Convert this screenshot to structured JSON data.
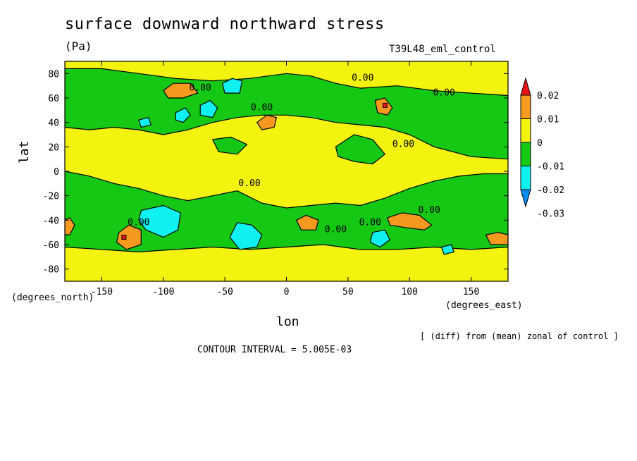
{
  "chart_data": {
    "type": "heatmap",
    "title": "surface downward northward stress",
    "units": "(Pa)",
    "experiment": "T39L48_eml_control",
    "xlabel": "lon",
    "ylabel": "lat",
    "x_units": "(degrees_east)",
    "y_units": "(degrees_north)",
    "xlim": [
      -180,
      180
    ],
    "ylim": [
      -90,
      90
    ],
    "x_ticks": [
      -150,
      -100,
      -50,
      0,
      50,
      100,
      150
    ],
    "y_ticks": [
      80,
      60,
      40,
      20,
      0,
      -20,
      -40,
      -60,
      -80
    ],
    "x_tick_labels": [
      "-150",
      "-100",
      "-50",
      "0",
      "50",
      "100",
      "150"
    ],
    "y_tick_labels": [
      "80",
      "60",
      "40",
      "20",
      "0",
      "-20",
      "-40",
      "-60",
      "-80"
    ],
    "colorbar": {
      "levels": [
        "0.02",
        "0.01",
        "0",
        "-0.01",
        "-0.02",
        "-0.03"
      ],
      "colors": [
        "#e8141b",
        "#f59a1e",
        "#f4f20f",
        "#14c814",
        "#0ff0f0",
        "#0a8cf0"
      ]
    },
    "contour_labels": [
      "0.00",
      "0.00",
      "0.00",
      "0.00",
      "0.00",
      "0.00",
      "0.00",
      "0.00",
      "0.00",
      "0.00"
    ],
    "contour_interval_text": "CONTOUR INTERVAL = 5.005E-03",
    "note": "[ (diff) from (mean) zonal of control ]",
    "regions": {
      "green": [
        [
          [
            -180,
            84
          ],
          [
            -150,
            84
          ],
          [
            -120,
            80
          ],
          [
            -90,
            76
          ],
          [
            -60,
            74
          ],
          [
            -30,
            76
          ],
          [
            0,
            80
          ],
          [
            20,
            78
          ],
          [
            40,
            72
          ],
          [
            60,
            68
          ],
          [
            90,
            70
          ],
          [
            120,
            66
          ],
          [
            150,
            64
          ],
          [
            180,
            62
          ],
          [
            180,
            10
          ],
          [
            150,
            12
          ],
          [
            120,
            20
          ],
          [
            100,
            30
          ],
          [
            80,
            36
          ],
          [
            60,
            38
          ],
          [
            40,
            40
          ],
          [
            20,
            44
          ],
          [
            0,
            46
          ],
          [
            -20,
            46
          ],
          [
            -40,
            44
          ],
          [
            -60,
            40
          ],
          [
            -80,
            34
          ],
          [
            -100,
            30
          ],
          [
            -120,
            34
          ],
          [
            -140,
            36
          ],
          [
            -160,
            34
          ],
          [
            -180,
            36
          ]
        ],
        [
          [
            -180,
            0
          ],
          [
            -160,
            -4
          ],
          [
            -140,
            -10
          ],
          [
            -120,
            -14
          ],
          [
            -100,
            -20
          ],
          [
            -80,
            -24
          ],
          [
            -60,
            -20
          ],
          [
            -40,
            -16
          ],
          [
            -20,
            -26
          ],
          [
            0,
            -30
          ],
          [
            20,
            -28
          ],
          [
            40,
            -26
          ],
          [
            60,
            -28
          ],
          [
            80,
            -22
          ],
          [
            100,
            -14
          ],
          [
            120,
            -8
          ],
          [
            140,
            -4
          ],
          [
            160,
            -2
          ],
          [
            180,
            -2
          ],
          [
            180,
            -62
          ],
          [
            150,
            -64
          ],
          [
            120,
            -62
          ],
          [
            90,
            -64
          ],
          [
            60,
            -64
          ],
          [
            30,
            -60
          ],
          [
            0,
            -62
          ],
          [
            -30,
            -64
          ],
          [
            -60,
            -62
          ],
          [
            -90,
            -64
          ],
          [
            -120,
            -66
          ],
          [
            -150,
            -64
          ],
          [
            -180,
            -62
          ]
        ],
        [
          [
            40,
            20
          ],
          [
            55,
            30
          ],
          [
            70,
            26
          ],
          [
            80,
            14
          ],
          [
            70,
            6
          ],
          [
            55,
            8
          ],
          [
            42,
            12
          ]
        ],
        [
          [
            -60,
            26
          ],
          [
            -45,
            28
          ],
          [
            -32,
            22
          ],
          [
            -40,
            14
          ],
          [
            -55,
            16
          ]
        ]
      ],
      "orange": [
        [
          [
            -100,
            66
          ],
          [
            -92,
            72
          ],
          [
            -78,
            72
          ],
          [
            -72,
            64
          ],
          [
            -84,
            60
          ],
          [
            -96,
            60
          ]
        ],
        [
          [
            -136,
            -50
          ],
          [
            -128,
            -44
          ],
          [
            -118,
            -48
          ],
          [
            -118,
            -60
          ],
          [
            -130,
            -64
          ],
          [
            -138,
            -58
          ]
        ],
        [
          [
            82,
            -38
          ],
          [
            94,
            -34
          ],
          [
            108,
            -36
          ],
          [
            118,
            -44
          ],
          [
            112,
            -48
          ],
          [
            96,
            -46
          ],
          [
            84,
            -44
          ]
        ],
        [
          [
            72,
            58
          ],
          [
            80,
            60
          ],
          [
            86,
            52
          ],
          [
            82,
            46
          ],
          [
            74,
            48
          ]
        ],
        [
          [
            -24,
            40
          ],
          [
            -16,
            46
          ],
          [
            -8,
            44
          ],
          [
            -10,
            36
          ],
          [
            -20,
            34
          ]
        ],
        [
          [
            8,
            -40
          ],
          [
            16,
            -36
          ],
          [
            26,
            -40
          ],
          [
            24,
            -48
          ],
          [
            12,
            -48
          ]
        ],
        [
          [
            162,
            -52
          ],
          [
            172,
            -50
          ],
          [
            180,
            -52
          ],
          [
            180,
            -60
          ],
          [
            166,
            -60
          ]
        ],
        [
          [
            -180,
            -40
          ],
          [
            -176,
            -38
          ],
          [
            -172,
            -44
          ],
          [
            -176,
            -52
          ],
          [
            -180,
            -52
          ]
        ]
      ],
      "cyan": [
        [
          [
            -118,
            -32
          ],
          [
            -100,
            -28
          ],
          [
            -86,
            -34
          ],
          [
            -88,
            -48
          ],
          [
            -100,
            -54
          ],
          [
            -114,
            -48
          ],
          [
            -120,
            -40
          ]
        ],
        [
          [
            -40,
            -42
          ],
          [
            -28,
            -44
          ],
          [
            -20,
            -52
          ],
          [
            -24,
            -62
          ],
          [
            -38,
            -64
          ],
          [
            -46,
            -54
          ]
        ],
        [
          [
            70,
            -50
          ],
          [
            80,
            -48
          ],
          [
            84,
            -56
          ],
          [
            76,
            -62
          ],
          [
            68,
            -58
          ]
        ],
        [
          [
            -52,
            72
          ],
          [
            -44,
            76
          ],
          [
            -36,
            74
          ],
          [
            -38,
            64
          ],
          [
            -50,
            64
          ]
        ],
        [
          [
            -70,
            54
          ],
          [
            -62,
            58
          ],
          [
            -56,
            52
          ],
          [
            -60,
            44
          ],
          [
            -70,
            46
          ]
        ],
        [
          [
            -90,
            48
          ],
          [
            -82,
            52
          ],
          [
            -78,
            46
          ],
          [
            -84,
            40
          ],
          [
            -90,
            42
          ]
        ],
        [
          [
            -120,
            42
          ],
          [
            -112,
            44
          ],
          [
            -110,
            38
          ],
          [
            -118,
            36
          ]
        ],
        [
          [
            126,
            -62
          ],
          [
            134,
            -60
          ],
          [
            136,
            -66
          ],
          [
            128,
            -68
          ]
        ]
      ],
      "red_points": [
        [
          -132,
          -54
        ],
        [
          80,
          54
        ]
      ]
    },
    "contour_label_positions": [
      [
        -70,
        66
      ],
      [
        62,
        74
      ],
      [
        -20,
        50
      ],
      [
        -30,
        -12
      ],
      [
        95,
        20
      ],
      [
        116,
        -34
      ],
      [
        68,
        -44
      ],
      [
        40,
        -50
      ],
      [
        -120,
        -44
      ],
      [
        128,
        62
      ]
    ]
  }
}
